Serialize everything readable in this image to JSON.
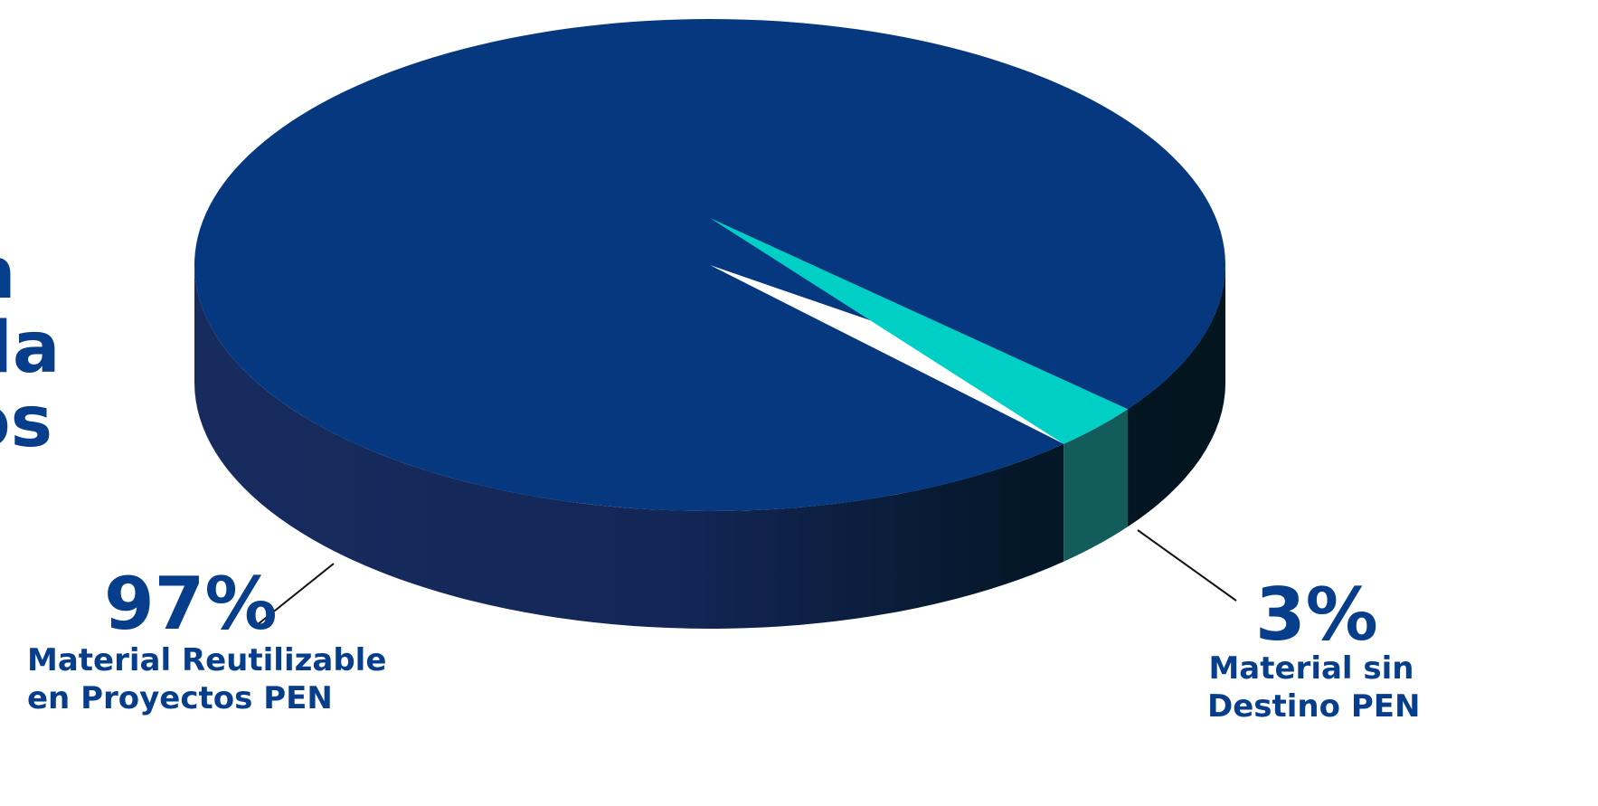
{
  "heading_fragment": [
    "n",
    "da",
    "os"
  ],
  "chart_data": {
    "type": "pie",
    "slices": [
      {
        "value": 97,
        "display": "97%",
        "caption": [
          "Material Reutilizable",
          "en Proyectos PEN"
        ],
        "color": "#06387f"
      },
      {
        "value": 3,
        "display": "3%",
        "caption": [
          "Material sin",
          "Destino PEN"
        ],
        "color": "#00cfc5"
      }
    ]
  },
  "colors": {
    "accent": "#073e8c",
    "top_main": "#06387f",
    "top_small": "#00cfc5",
    "side_small": "#125c5c",
    "side_dark_left": "#172b5e",
    "side_dark_right": "#03151f"
  }
}
